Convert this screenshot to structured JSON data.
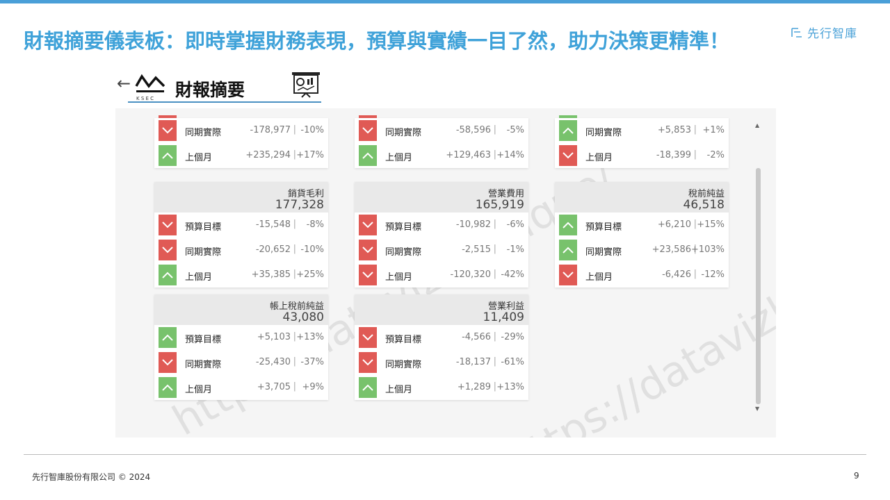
{
  "slide": {
    "title": "財報摘要儀表板：即時掌握財務表現，預算與實績一目了然，助力決策更精準！",
    "brand_name": "先行智庫",
    "footer": "先行智庫股份有限公司 © 2024",
    "page_number": "9"
  },
  "app": {
    "back_symbol": "←",
    "logo_text": "K S E C",
    "title": "財報摘要",
    "watermark": "https://datavizboutique/"
  },
  "colors": {
    "down": "#e05a55",
    "up": "#78c26c",
    "accent": "#3fa2d9"
  },
  "cards": [
    {
      "id": "top-left",
      "rows": [
        {
          "label": "同期實際",
          "diff": "-178,977",
          "sep": "|",
          "pct": "-10%",
          "dir": "down"
        },
        {
          "label": "上個月",
          "diff": "+235,294",
          "sep": "|",
          "pct": "+17%",
          "dir": "up"
        }
      ]
    },
    {
      "id": "top-middle",
      "rows": [
        {
          "label": "同期實際",
          "diff": "-58,596",
          "sep": "|",
          "pct": "-5%",
          "dir": "down"
        },
        {
          "label": "上個月",
          "diff": "+129,463",
          "sep": "|",
          "pct": "+14%",
          "dir": "up"
        }
      ]
    },
    {
      "id": "top-right",
      "rows": [
        {
          "label": "同期實際",
          "diff": "+5,853",
          "sep": "|",
          "pct": "+1%",
          "dir": "up"
        },
        {
          "label": "上個月",
          "diff": "-18,399",
          "sep": "|",
          "pct": "-2%",
          "dir": "down"
        }
      ]
    },
    {
      "id": "gross-profit",
      "name": "銷貨毛利",
      "value": "177,328",
      "rows": [
        {
          "label": "預算目標",
          "diff": "-15,548",
          "sep": "|",
          "pct": "-8%",
          "dir": "down"
        },
        {
          "label": "同期實際",
          "diff": "-20,652",
          "sep": "|",
          "pct": "-10%",
          "dir": "down"
        },
        {
          "label": "上個月",
          "diff": "+35,385",
          "sep": "|",
          "pct": "+25%",
          "dir": "up"
        }
      ]
    },
    {
      "id": "operating-expense",
      "name": "營業費用",
      "value": "165,919",
      "rows": [
        {
          "label": "預算目標",
          "diff": "-10,982",
          "sep": "|",
          "pct": "-6%",
          "dir": "down"
        },
        {
          "label": "同期實際",
          "diff": "-2,515",
          "sep": "|",
          "pct": "-1%",
          "dir": "down"
        },
        {
          "label": "上個月",
          "diff": "-120,320",
          "sep": "|",
          "pct": "-42%",
          "dir": "down"
        }
      ]
    },
    {
      "id": "pretax-income",
      "name": "稅前純益",
      "value": "46,518",
      "rows": [
        {
          "label": "預算目標",
          "diff": "+6,210",
          "sep": "|",
          "pct": "+15%",
          "dir": "up"
        },
        {
          "label": "同期實際",
          "diff": "+23,586",
          "sep": "|",
          "pct": "+103%",
          "dir": "up"
        },
        {
          "label": "上個月",
          "diff": "-6,426",
          "sep": "|",
          "pct": "-12%",
          "dir": "down"
        }
      ]
    },
    {
      "id": "book-pretax-income",
      "name": "帳上稅前純益",
      "value": "43,080",
      "rows": [
        {
          "label": "預算目標",
          "diff": "+5,103",
          "sep": "|",
          "pct": "+13%",
          "dir": "up"
        },
        {
          "label": "同期實際",
          "diff": "-25,430",
          "sep": "|",
          "pct": "-37%",
          "dir": "down"
        },
        {
          "label": "上個月",
          "diff": "+3,705",
          "sep": "|",
          "pct": "+9%",
          "dir": "up"
        }
      ]
    },
    {
      "id": "operating-profit",
      "name": "營業利益",
      "value": "11,409",
      "rows": [
        {
          "label": "預算目標",
          "diff": "-4,566",
          "sep": "|",
          "pct": "-29%",
          "dir": "down"
        },
        {
          "label": "同期實際",
          "diff": "-18,137",
          "sep": "|",
          "pct": "-61%",
          "dir": "down"
        },
        {
          "label": "上個月",
          "diff": "+1,289",
          "sep": "|",
          "pct": "+13%",
          "dir": "up"
        }
      ]
    }
  ]
}
